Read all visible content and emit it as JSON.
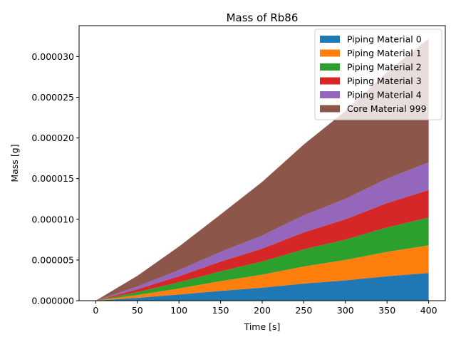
{
  "chart_data": {
    "type": "area",
    "title": "Mass of Rb86",
    "xlabel": "Time [s]",
    "ylabel": "Mass [g]",
    "xlim": [
      -20,
      420
    ],
    "ylim": [
      0,
      3.38e-05
    ],
    "x_ticks": [
      0,
      50,
      100,
      150,
      200,
      250,
      300,
      350,
      400
    ],
    "y_ticks": [
      0,
      5e-06,
      1e-05,
      1.5e-05,
      2e-05,
      2.5e-05,
      3e-05
    ],
    "y_tick_labels": [
      "0.000000",
      "0.000005",
      "0.000010",
      "0.000015",
      "0.000020",
      "0.000025",
      "0.000030"
    ],
    "stacked": true,
    "grid": false,
    "legend_position": "top-right",
    "x": [
      0,
      50,
      100,
      150,
      200,
      250,
      300,
      350,
      400
    ],
    "series": [
      {
        "name": "Piping Material 0",
        "color": "#1f77b4",
        "values": [
          0,
          3.5e-07,
          7.5e-07,
          1.2e-06,
          1.6e-06,
          2.1e-06,
          2.5e-06,
          3e-06,
          3.4e-06
        ]
      },
      {
        "name": "Piping Material 1",
        "color": "#ff7f0e",
        "values": [
          0,
          3.5e-07,
          7.5e-07,
          1.2e-06,
          1.6e-06,
          2.1e-06,
          2.5e-06,
          3e-06,
          3.4e-06
        ]
      },
      {
        "name": "Piping Material 2",
        "color": "#2ca02c",
        "values": [
          0,
          3.5e-07,
          7.5e-07,
          1.2e-06,
          1.6e-06,
          2.1e-06,
          2.5e-06,
          3e-06,
          3.4e-06
        ]
      },
      {
        "name": "Piping Material 3",
        "color": "#d62728",
        "values": [
          0,
          3.5e-07,
          7.5e-07,
          1.2e-06,
          1.6e-06,
          2.1e-06,
          2.5e-06,
          3e-06,
          3.4e-06
        ]
      },
      {
        "name": "Piping Material 4",
        "color": "#9467bd",
        "values": [
          0,
          3.5e-07,
          7.5e-07,
          1.2e-06,
          1.6e-06,
          2.1e-06,
          2.5e-06,
          3e-06,
          3.4e-06
        ]
      },
      {
        "name": "Core Material 999",
        "color": "#8c564b",
        "values": [
          0,
          1.3e-06,
          2.9e-06,
          4.6e-06,
          6.6e-06,
          8.7e-06,
          1.08e-05,
          1.31e-05,
          1.52e-05
        ]
      }
    ]
  }
}
